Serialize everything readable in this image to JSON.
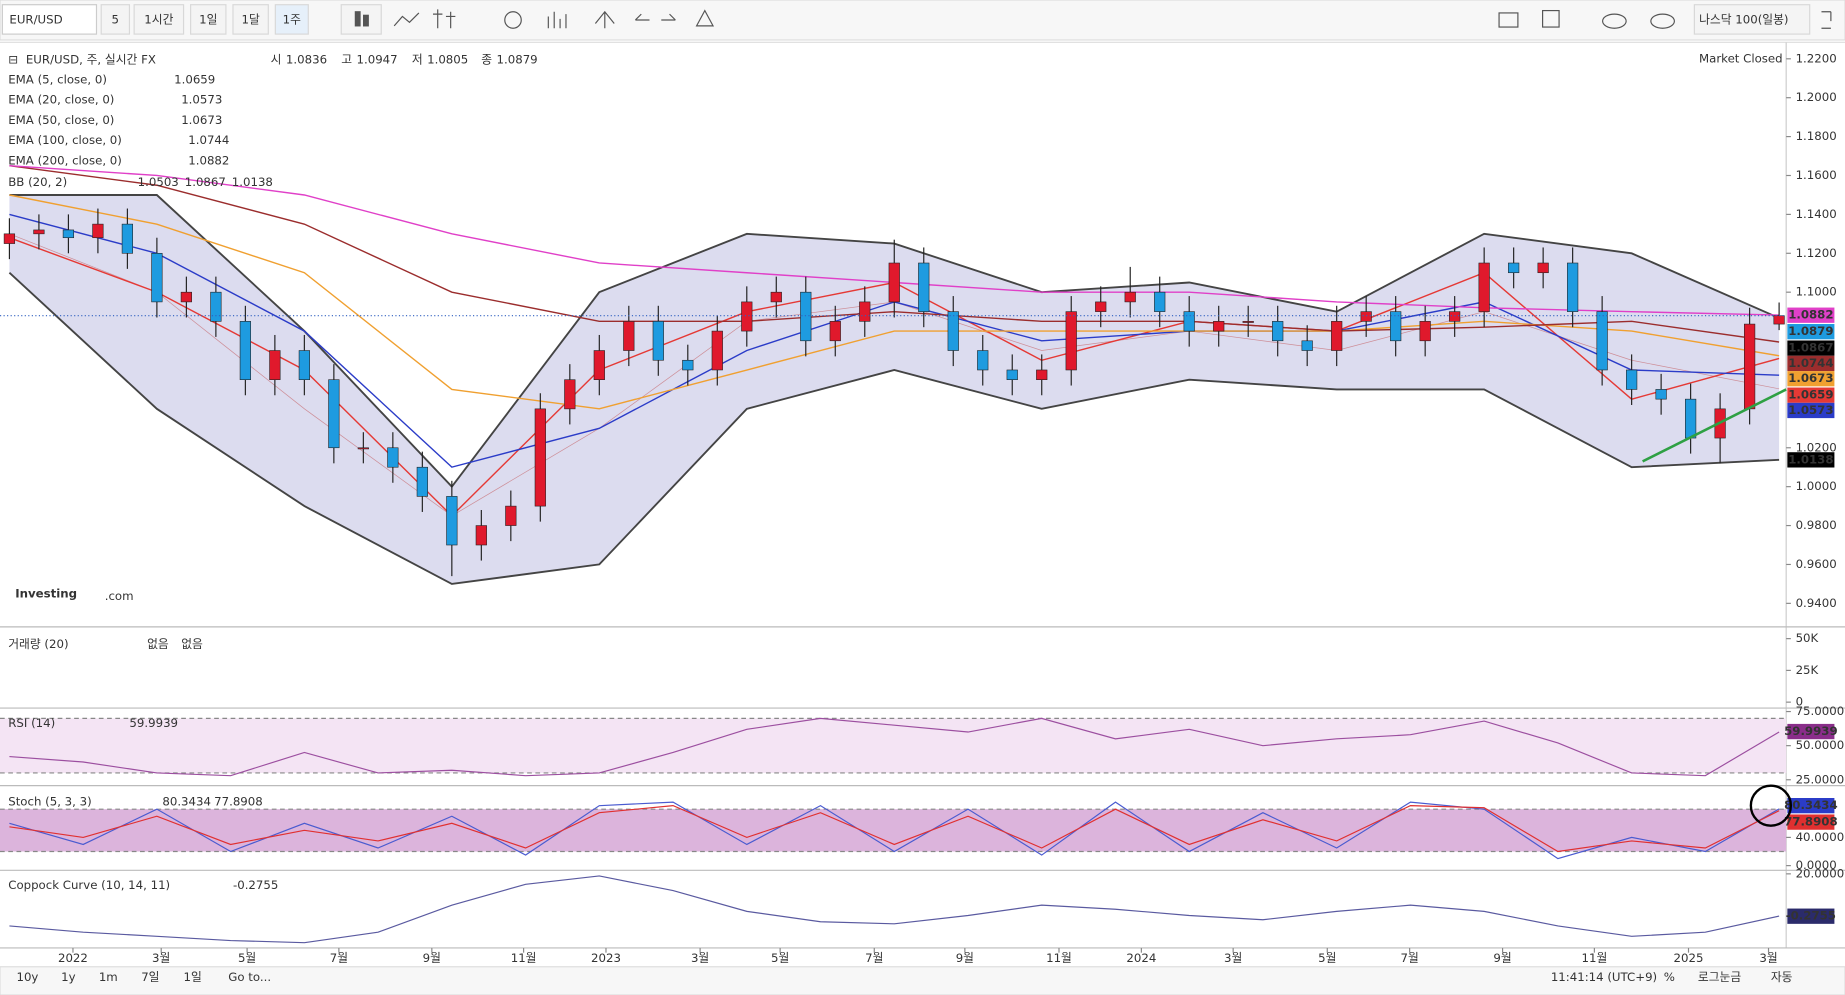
{
  "toolbar": {
    "symbol": "EUR/USD",
    "intervals": [
      "5",
      "1시간",
      "1일",
      "1달",
      "1주"
    ],
    "compare": "나스닥 100(일봉)"
  },
  "watermark": {
    "brand": "Investing",
    "suffix": ".com"
  },
  "chart_data": [
    {
      "type": "candlestick",
      "title": "EUR/USD, 주, 실시간 FX",
      "ohlc_labels": [
        "시",
        "고",
        "저",
        "종"
      ],
      "status": "Market Closed",
      "up_color": "#e0192c",
      "down_color": "#1e9be0",
      "open": [
        1.125,
        1.13,
        1.132,
        1.128,
        1.135,
        1.12,
        1.095,
        1.1,
        1.085,
        1.055,
        1.07,
        1.055,
        1.02,
        1.02,
        1.01,
        0.995,
        0.97,
        0.98,
        0.99,
        1.04,
        1.055,
        1.07,
        1.085,
        1.065,
        1.06,
        1.08,
        1.095,
        1.1,
        1.075,
        1.085,
        1.095,
        1.115,
        1.09,
        1.07,
        1.06,
        1.055,
        1.06,
        1.09,
        1.095,
        1.1,
        1.09,
        1.08,
        1.085,
        1.085,
        1.075,
        1.07,
        1.085,
        1.09,
        1.075,
        1.085,
        1.09,
        1.115,
        1.11,
        1.115,
        1.09,
        1.06,
        1.05,
        1.045,
        1.025,
        1.04,
        1.0836
      ],
      "high": [
        1.138,
        1.14,
        1.14,
        1.143,
        1.143,
        1.128,
        1.108,
        1.108,
        1.093,
        1.078,
        1.078,
        1.063,
        1.028,
        1.028,
        1.018,
        1.003,
        0.988,
        0.998,
        1.048,
        1.063,
        1.078,
        1.093,
        1.093,
        1.073,
        1.088,
        1.103,
        1.108,
        1.108,
        1.093,
        1.103,
        1.127,
        1.123,
        1.098,
        1.078,
        1.068,
        1.068,
        1.098,
        1.103,
        1.113,
        1.108,
        1.098,
        1.093,
        1.093,
        1.093,
        1.083,
        1.093,
        1.098,
        1.098,
        1.093,
        1.098,
        1.123,
        1.123,
        1.123,
        1.123,
        1.098,
        1.068,
        1.058,
        1.053,
        1.048,
        1.092,
        1.0947
      ],
      "low": [
        1.117,
        1.122,
        1.12,
        1.12,
        1.112,
        1.087,
        1.087,
        1.077,
        1.047,
        1.047,
        1.047,
        1.012,
        1.012,
        1.002,
        0.987,
        0.954,
        0.962,
        0.972,
        0.982,
        1.032,
        1.047,
        1.062,
        1.057,
        1.052,
        1.052,
        1.072,
        1.087,
        1.067,
        1.067,
        1.077,
        1.087,
        1.082,
        1.062,
        1.052,
        1.047,
        1.047,
        1.052,
        1.082,
        1.087,
        1.082,
        1.072,
        1.072,
        1.077,
        1.067,
        1.062,
        1.062,
        1.077,
        1.067,
        1.067,
        1.077,
        1.082,
        1.102,
        1.102,
        1.082,
        1.052,
        1.042,
        1.037,
        1.017,
        1.012,
        1.032,
        1.0805
      ],
      "close": [
        1.13,
        1.132,
        1.128,
        1.135,
        1.12,
        1.095,
        1.1,
        1.085,
        1.055,
        1.07,
        1.055,
        1.02,
        1.02,
        1.01,
        0.995,
        0.97,
        0.98,
        0.99,
        1.04,
        1.055,
        1.07,
        1.085,
        1.065,
        1.06,
        1.08,
        1.095,
        1.1,
        1.075,
        1.085,
        1.095,
        1.115,
        1.09,
        1.07,
        1.06,
        1.055,
        1.06,
        1.09,
        1.095,
        1.1,
        1.09,
        1.08,
        1.085,
        1.085,
        1.075,
        1.07,
        1.085,
        1.09,
        1.075,
        1.085,
        1.09,
        1.115,
        1.11,
        1.115,
        1.09,
        1.06,
        1.05,
        1.045,
        1.025,
        1.04,
        1.0836,
        1.0879
      ],
      "series": [
        {
          "name": "EMA (5, close, 0)",
          "color": "#e53935",
          "values": [
            1.128,
            1.1,
            1.06,
            0.985,
            1.06,
            1.09,
            1.105,
            1.065,
            1.085,
            1.08,
            1.11,
            1.045,
            1.0659
          ]
        },
        {
          "name": "EMA (20, close, 0)",
          "color": "#2b3cc8",
          "values": [
            1.14,
            1.12,
            1.08,
            1.01,
            1.03,
            1.07,
            1.095,
            1.075,
            1.08,
            1.08,
            1.095,
            1.06,
            1.0573
          ]
        },
        {
          "name": "EMA (50, close, 0)",
          "color": "#f0a030",
          "values": [
            1.15,
            1.135,
            1.11,
            1.05,
            1.04,
            1.06,
            1.08,
            1.08,
            1.08,
            1.08,
            1.085,
            1.08,
            1.0673
          ]
        },
        {
          "name": "EMA (100, close, 0)",
          "color": "#9b2d2d",
          "values": [
            1.165,
            1.155,
            1.135,
            1.1,
            1.085,
            1.085,
            1.09,
            1.085,
            1.085,
            1.08,
            1.082,
            1.085,
            1.0744
          ]
        },
        {
          "name": "EMA (200, close, 0)",
          "color": "#e040c8",
          "values": [
            1.165,
            1.16,
            1.15,
            1.13,
            1.115,
            1.11,
            1.105,
            1.1,
            1.1,
            1.095,
            1.092,
            1.09,
            1.0882
          ]
        }
      ],
      "bollinger": {
        "name": "BB (20, 2)",
        "fill": "#dcdcef",
        "middle": {
          "color": "#c04040",
          "values": [
            1.13,
            1.1,
            1.04,
            0.985,
            1.03,
            1.085,
            1.095,
            1.07,
            1.08,
            1.07,
            1.09,
            1.065,
            1.0503
          ]
        },
        "upper": {
          "color": "#444444",
          "values": [
            1.15,
            1.15,
            1.08,
            1.0,
            1.1,
            1.13,
            1.125,
            1.1,
            1.105,
            1.09,
            1.13,
            1.12,
            1.0867
          ]
        },
        "lower": {
          "color": "#444444",
          "values": [
            1.11,
            1.04,
            0.99,
            0.95,
            0.96,
            1.04,
            1.06,
            1.04,
            1.055,
            1.05,
            1.05,
            1.01,
            1.0138
          ]
        }
      },
      "trendline": {
        "color": "#2ea043",
        "values": [
          1.013,
          1.05
        ]
      },
      "ylim": [
        0.94,
        1.22
      ],
      "yticks": [
        {
          "value": 1.22,
          "label": "1.2200"
        },
        {
          "value": 1.2,
          "label": "1.2000"
        },
        {
          "value": 1.18,
          "label": "1.1800"
        },
        {
          "value": 1.16,
          "label": "1.1600"
        },
        {
          "value": 1.14,
          "label": "1.1400"
        },
        {
          "value": 1.12,
          "label": "1.1200"
        },
        {
          "value": 1.1,
          "label": "1.1000"
        },
        {
          "value": 1.02,
          "label": "1.0200"
        },
        {
          "value": 1,
          "label": "1.0000"
        },
        {
          "value": 0.98,
          "label": "0.9800"
        },
        {
          "value": 0.96,
          "label": "0.9600"
        },
        {
          "value": 0.94,
          "label": "0.9400"
        }
      ]
    },
    {
      "type": "volume",
      "title": "거래량 (20)",
      "labels": [
        "없음",
        "없음"
      ],
      "ylim": [
        0,
        50000
      ],
      "yticks": [
        {
          "value": 50000,
          "label": "50K"
        },
        {
          "value": 25000,
          "label": "25K"
        },
        0
      ]
    },
    {
      "type": "oscillator",
      "title": "RSI (14)",
      "fill": "#f4e4f4",
      "bands": [
        30,
        70
      ],
      "ylim": [
        25,
        75
      ],
      "yticks": [
        {
          "value": 75,
          "label": "75.0000"
        },
        {
          "value": 50,
          "label": "50.0000"
        },
        {
          "value": 25,
          "label": "25.0000"
        }
      ],
      "series": [
        {
          "color": "#9c4fa0",
          "values": [
            42,
            38,
            30,
            28,
            45,
            30,
            32,
            28,
            30,
            45,
            62,
            70,
            65,
            60,
            70,
            55,
            62,
            50,
            55,
            58,
            68,
            52,
            30,
            28,
            59.9939
          ]
        }
      ]
    },
    {
      "type": "oscillator",
      "title": "Stoch (5, 3, 3)",
      "fill": "#dcb4dc",
      "bands": [
        20,
        80
      ],
      "ylim": [
        0,
        100
      ],
      "yticks": [
        {
          "value": 40,
          "label": "40.0000"
        },
        {
          "value": 0,
          "label": "0.0000"
        }
      ],
      "series": [
        {
          "color": "#4a5bd0",
          "values": [
            60,
            30,
            80,
            20,
            60,
            25,
            70,
            15,
            85,
            90,
            30,
            85,
            20,
            80,
            15,
            90,
            20,
            75,
            25,
            90,
            80,
            10,
            40,
            20,
            80.3434
          ]
        },
        {
          "color": "#e03030",
          "values": [
            55,
            40,
            70,
            30,
            50,
            35,
            60,
            25,
            75,
            85,
            40,
            75,
            30,
            70,
            25,
            80,
            30,
            65,
            35,
            85,
            82,
            20,
            35,
            25,
            77.8908
          ]
        }
      ]
    },
    {
      "type": "oscillator",
      "title": "Coppock Curve (10, 14, 11)",
      "ylim": [
        -15,
        20
      ],
      "yticks": [
        {
          "value": 20,
          "label": "20.0000"
        }
      ],
      "series": [
        {
          "color": "#5a5aa0",
          "values": [
            -5,
            -8,
            -10,
            -12,
            -13,
            -8,
            5,
            15,
            19,
            12,
            2,
            -3,
            -4,
            0,
            5,
            3,
            0,
            -2,
            2,
            5,
            2,
            -5,
            -10,
            -8,
            -0.2755
          ]
        }
      ]
    }
  ],
  "x_axis": {
    "labels": [
      "2022",
      "3월",
      "5월",
      "7월",
      "9월",
      "11월",
      "2023",
      "3월",
      "5월",
      "7월",
      "9월",
      "11월",
      "2024",
      "3월",
      "5월",
      "7월",
      "9월",
      "11월",
      "2025",
      "3월"
    ]
  },
  "footer": {
    "ranges": [
      "10y",
      "1y",
      "1m",
      "7일",
      "1일"
    ],
    "goto": "Go to...",
    "clock": "11:41:14 (UTC+9)",
    "percent": "%",
    "log": "로그눈금",
    "auto": "자동"
  }
}
